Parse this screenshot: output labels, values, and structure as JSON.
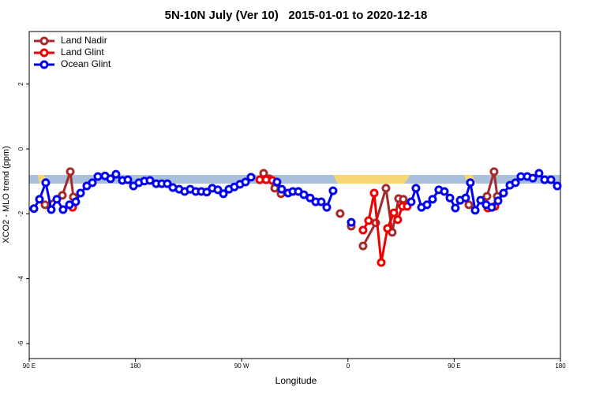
{
  "chart_data": {
    "type": "line",
    "title": "5N-10N July (Ver 10)   2015-01-01 to 2020-12-18",
    "x_label": "Longitude",
    "y_label": "XCO2 - MLO trend (ppm)",
    "xlim": [
      90,
      540
    ],
    "ylim": [
      -6.46,
      3.62
    ],
    "xticks": [
      {
        "value": 90,
        "label": "90 E"
      },
      {
        "value": 180,
        "label": "180"
      },
      {
        "value": 270,
        "label": "90 W"
      },
      {
        "value": 360,
        "label": "0"
      },
      {
        "value": 450,
        "label": "90 E"
      },
      {
        "value": 540,
        "label": "180"
      }
    ],
    "yticks": [
      -6,
      -4,
      -2,
      0,
      2
    ],
    "legend": "top-left",
    "series": [
      {
        "name": "Land Nadir",
        "color": "#a52a2a",
        "x": [
          103.4,
          118.1,
          124.8,
          127.4,
          null,
          288.6,
          293.3,
          298.0,
          303.3,
          null,
          353.4,
          null,
          362.8,
          null,
          372.8,
          383.5,
          392.2,
          397.5,
          402.9,
          406.9,
          null,
          462.4,
          null,
          477.8,
          483.8,
          486.5
        ],
        "values": [
          -1.72,
          -1.43,
          -0.7,
          -1.48,
          null,
          -0.75,
          -0.92,
          -1.21,
          -1.38,
          null,
          -1.99,
          null,
          -2.38,
          null,
          -2.99,
          -2.28,
          -1.21,
          -2.57,
          -1.53,
          -1.55,
          null,
          -1.72,
          null,
          -1.46,
          -0.7,
          -1.46
        ]
      },
      {
        "name": "Land Glint",
        "color": "#ee0000",
        "x": [
          126.8,
          null,
          285.3,
          290.7,
          296.0,
          null,
          372.8,
          377.5,
          382.2,
          388.2,
          393.5,
          398.9,
          402.2,
          406.2,
          410.2,
          null,
          478.5,
          484.5
        ],
        "values": [
          -1.8,
          null,
          -0.95,
          -0.95,
          -0.97,
          null,
          -2.5,
          -2.21,
          -1.36,
          -3.5,
          -2.45,
          -1.97,
          -2.18,
          -1.77,
          -1.77,
          null,
          -1.82,
          -1.77
        ]
      },
      {
        "name": "Ocean Glint",
        "color": "#0000ee",
        "x": [
          94.0,
          98.7,
          104.0,
          108.7,
          113.4,
          118.7,
          124.1,
          129.4,
          133.5,
          138.8,
          143.5,
          148.2,
          154.2,
          158.9,
          163.5,
          168.9,
          173.6,
          178.3,
          182.9,
          187.6,
          192.3,
          197.6,
          202.3,
          207.0,
          211.7,
          217.0,
          221.7,
          226.4,
          231.1,
          235.8,
          240.4,
          245.1,
          249.8,
          254.5,
          259.2,
          263.8,
          268.5,
          273.2,
          277.9,
          null,
          299.9,
          303.9,
          309.3,
          313.3,
          318.0,
          322.7,
          328.0,
          332.7,
          337.4,
          342.1,
          347.4,
          null,
          362.8,
          null,
          413.6,
          417.6,
          422.3,
          427.0,
          431.7,
          437.0,
          441.7,
          446.4,
          451.0,
          455.1,
          459.7,
          463.7,
          467.8,
          472.4,
          477.1,
          481.8,
          487.2,
          491.8,
          497.2,
          501.9,
          506.5,
          511.9,
          516.6,
          521.9,
          526.6,
          532.0,
          537.3
        ],
        "values": [
          -1.84,
          -1.55,
          -1.04,
          -1.87,
          -1.55,
          -1.87,
          -1.72,
          -1.63,
          -1.36,
          -1.14,
          -1.04,
          -0.85,
          -0.83,
          -0.92,
          -0.78,
          -0.97,
          -0.95,
          -1.14,
          -1.04,
          -0.99,
          -0.97,
          -1.07,
          -1.07,
          -1.07,
          -1.19,
          -1.24,
          -1.31,
          -1.24,
          -1.31,
          -1.31,
          -1.33,
          -1.21,
          -1.26,
          -1.38,
          -1.24,
          -1.17,
          -1.09,
          -1.02,
          -0.87,
          null,
          -1.02,
          -1.24,
          -1.36,
          -1.31,
          -1.31,
          -1.41,
          -1.51,
          -1.63,
          -1.63,
          -1.8,
          -1.29,
          null,
          -2.26,
          null,
          -1.63,
          -1.21,
          -1.8,
          -1.72,
          -1.55,
          -1.26,
          -1.31,
          -1.51,
          -1.82,
          -1.58,
          -1.51,
          -1.04,
          -1.89,
          -1.58,
          -1.72,
          -1.8,
          -1.6,
          -1.36,
          -1.12,
          -1.04,
          -0.85,
          -0.85,
          -0.9,
          -0.75,
          -0.95,
          -0.95,
          -1.14
        ]
      }
    ]
  }
}
